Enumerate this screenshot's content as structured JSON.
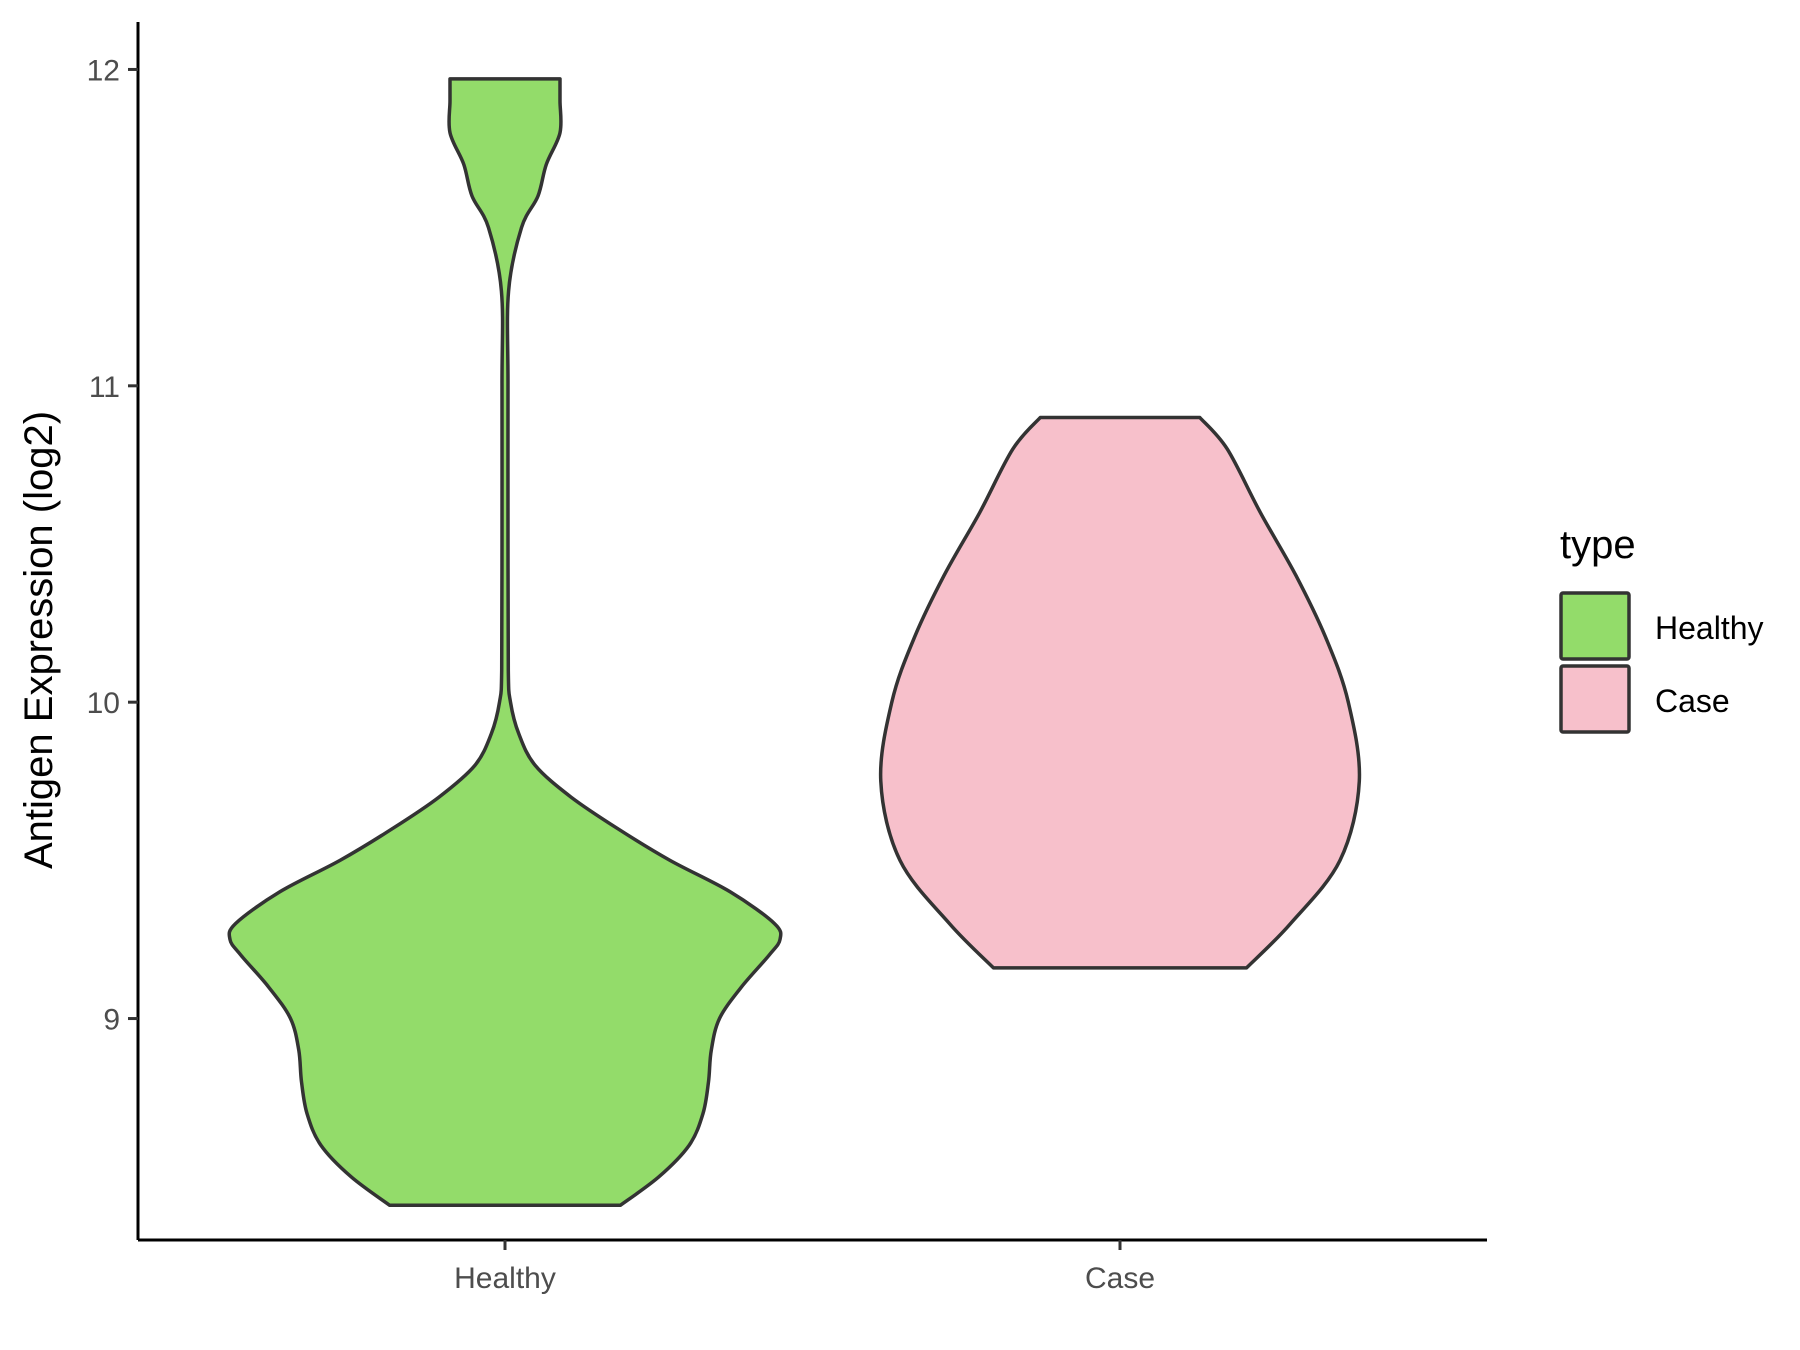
{
  "chart_data": {
    "type": "violin",
    "title": "",
    "xlabel": "",
    "ylabel": "Antigen Expression (log2)",
    "categories": [
      "Healthy",
      "Case"
    ],
    "ylim": [
      8.3,
      12.15
    ],
    "yticks": [
      9,
      10,
      11,
      12
    ],
    "grid": false,
    "legend": {
      "title": "type",
      "placement": "right",
      "entries": [
        {
          "label": "Healthy",
          "color": "#93DC6A"
        },
        {
          "label": "Case",
          "color": "#F7C0CB"
        }
      ]
    },
    "series": [
      {
        "name": "Healthy",
        "color": "#93DC6A",
        "min": 8.41,
        "max": 11.97,
        "density_profile": [
          [
            8.41,
            0.42
          ],
          [
            8.5,
            0.56
          ],
          [
            8.6,
            0.67
          ],
          [
            8.7,
            0.72
          ],
          [
            8.8,
            0.74
          ],
          [
            8.9,
            0.75
          ],
          [
            9.0,
            0.78
          ],
          [
            9.1,
            0.86
          ],
          [
            9.2,
            0.96
          ],
          [
            9.25,
            1.0
          ],
          [
            9.3,
            0.98
          ],
          [
            9.4,
            0.82
          ],
          [
            9.5,
            0.6
          ],
          [
            9.6,
            0.41
          ],
          [
            9.7,
            0.24
          ],
          [
            9.8,
            0.11
          ],
          [
            9.9,
            0.05
          ],
          [
            10.0,
            0.02
          ],
          [
            10.1,
            0.012
          ],
          [
            10.5,
            0.011
          ],
          [
            11.0,
            0.011
          ],
          [
            11.3,
            0.013
          ],
          [
            11.5,
            0.06
          ],
          [
            11.6,
            0.12
          ],
          [
            11.7,
            0.15
          ],
          [
            11.8,
            0.2
          ],
          [
            11.9,
            0.2
          ],
          [
            11.97,
            0.2
          ]
        ]
      },
      {
        "name": "Case",
        "color": "#F7C0CB",
        "min": 9.16,
        "max": 10.9,
        "density_profile": [
          [
            9.16,
            0.46
          ],
          [
            9.3,
            0.62
          ],
          [
            9.5,
            0.8
          ],
          [
            9.75,
            0.87
          ],
          [
            10.0,
            0.83
          ],
          [
            10.2,
            0.75
          ],
          [
            10.4,
            0.64
          ],
          [
            10.6,
            0.51
          ],
          [
            10.8,
            0.39
          ],
          [
            10.9,
            0.29
          ]
        ]
      }
    ]
  }
}
